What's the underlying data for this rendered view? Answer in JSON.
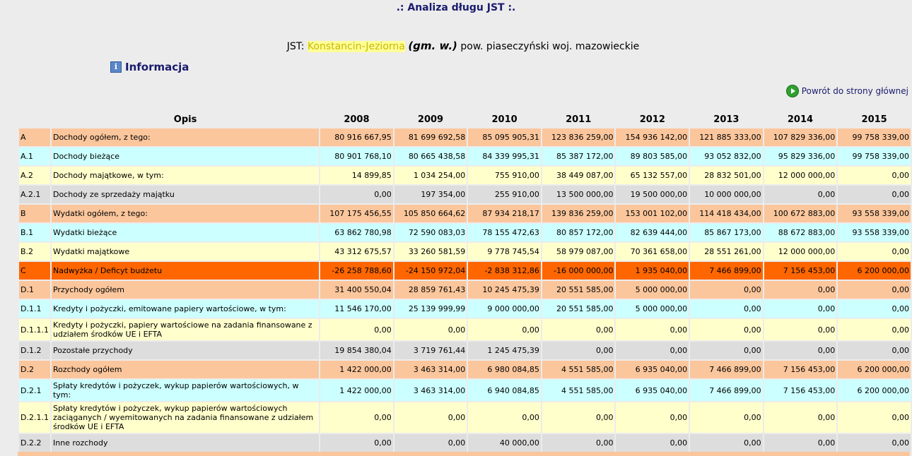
{
  "page": {
    "title": ".: Analiza długu JST :.",
    "jst_prefix": "JST:",
    "jst_name": "Konstancin-Jeziorna",
    "jst_type": "(gm. w.)",
    "jst_location": "pow. piaseczyński woj. mazowieckie",
    "info_label": "Informacja",
    "back_label": "Powrót do strony głównej"
  },
  "table": {
    "header": [
      "Opis",
      "2008",
      "2009",
      "2010",
      "2011",
      "2012",
      "2013",
      "2014",
      "2015"
    ],
    "rows": [
      {
        "code": "A",
        "desc": "Dochody ogółem, z tego:",
        "values": [
          "80 916 667,95",
          "81 699 692,58",
          "85 095 905,31",
          "123 836 259,00",
          "154 936 142,00",
          "121 885 333,00",
          "107 829 336,00",
          "99 758 339,00"
        ]
      },
      {
        "code": "A.1",
        "desc": "Dochody bieżące",
        "values": [
          "80 901 768,10",
          "80 665 438,58",
          "84 339 995,31",
          "85 387 172,00",
          "89 803 585,00",
          "93 052 832,00",
          "95 829 336,00",
          "99 758 339,00"
        ]
      },
      {
        "code": "A.2",
        "desc": "Dochody majątkowe, w tym:",
        "values": [
          "14 899,85",
          "1 034 254,00",
          "755 910,00",
          "38 449 087,00",
          "65 132 557,00",
          "28 832 501,00",
          "12 000 000,00",
          "0,00"
        ]
      },
      {
        "code": "A.2.1",
        "desc": "Dochody ze sprzedaży majątku",
        "values": [
          "0,00",
          "197 354,00",
          "255 910,00",
          "13 500 000,00",
          "19 500 000,00",
          "10 000 000,00",
          "0,00",
          "0,00"
        ]
      },
      {
        "code": "B",
        "desc": "Wydatki ogółem, z tego:",
        "values": [
          "107 175 456,55",
          "105 850 664,62",
          "87 934 218,17",
          "139 836 259,00",
          "153 001 102,00",
          "114 418 434,00",
          "100 672 883,00",
          "93 558 339,00"
        ]
      },
      {
        "code": "B.1",
        "desc": "Wydatki bieżące",
        "values": [
          "63 862 780,98",
          "72 590 083,03",
          "78 155 472,63",
          "80 857 172,00",
          "82 639 444,00",
          "85 867 173,00",
          "88 672 883,00",
          "93 558 339,00"
        ]
      },
      {
        "code": "B.2",
        "desc": "Wydatki majątkowe",
        "values": [
          "43 312 675,57",
          "33 260 581,59",
          "9 778 745,54",
          "58 979 087,00",
          "70 361 658,00",
          "28 551 261,00",
          "12 000 000,00",
          "0,00"
        ]
      },
      {
        "code": "C",
        "desc": "Nadwyżka / Deficyt budżetu",
        "values": [
          "-26 258 788,60",
          "-24 150 972,04",
          "-2 838 312,86",
          "-16 000 000,00",
          "1 935 040,00",
          "7 466 899,00",
          "7 156 453,00",
          "6 200 000,00"
        ]
      },
      {
        "code": "D.1",
        "desc": "Przychody ogółem",
        "values": [
          "31 400 550,04",
          "28 859 761,43",
          "10 245 475,39",
          "20 551 585,00",
          "5 000 000,00",
          "0,00",
          "0,00",
          "0,00"
        ]
      },
      {
        "code": "D.1.1",
        "desc": "Kredyty i pożyczki, emitowane papiery wartościowe, w tym:",
        "values": [
          "11 546 170,00",
          "25 139 999,99",
          "9 000 000,00",
          "20 551 585,00",
          "5 000 000,00",
          "0,00",
          "0,00",
          "0,00"
        ]
      },
      {
        "code": "D.1.1.1",
        "desc": "Kredyty i pożyczki, papiery wartościowe na zadania finansowane z udziałem środków UE i EFTA",
        "values": [
          "0,00",
          "0,00",
          "0,00",
          "0,00",
          "0,00",
          "0,00",
          "0,00",
          "0,00"
        ]
      },
      {
        "code": "D.1.2",
        "desc": "Pozostałe przychody",
        "values": [
          "19 854 380,04",
          "3 719 761,44",
          "1 245 475,39",
          "0,00",
          "0,00",
          "0,00",
          "0,00",
          "0,00"
        ]
      },
      {
        "code": "D.2",
        "desc": "Rozchody ogółem",
        "values": [
          "1 422 000,00",
          "3 463 314,00",
          "6 980 084,85",
          "4 551 585,00",
          "6 935 040,00",
          "7 466 899,00",
          "7 156 453,00",
          "6 200 000,00"
        ]
      },
      {
        "code": "D.2.1",
        "desc": "Spłaty kredytów i pożyczek, wykup papierów wartościowych, w tym:",
        "values": [
          "1 422 000,00",
          "3 463 314,00",
          "6 940 084,85",
          "4 551 585,00",
          "6 935 040,00",
          "7 466 899,00",
          "7 156 453,00",
          "6 200 000,00"
        ]
      },
      {
        "code": "D.2.1.1",
        "desc": "Spłaty kredytów i pożyczek, wykup papierów wartościowych zaciąganych / wyemitowanych na zadania finansowane z udziałem środków UE i EFTA",
        "values": [
          "0,00",
          "0,00",
          "0,00",
          "0,00",
          "0,00",
          "0,00",
          "0,00",
          "0,00"
        ]
      },
      {
        "code": "D.2.2",
        "desc": "Inne rozchody",
        "values": [
          "0,00",
          "0,00",
          "40 000,00",
          "0,00",
          "0,00",
          "0,00",
          "0,00",
          "0,00"
        ]
      }
    ]
  }
}
